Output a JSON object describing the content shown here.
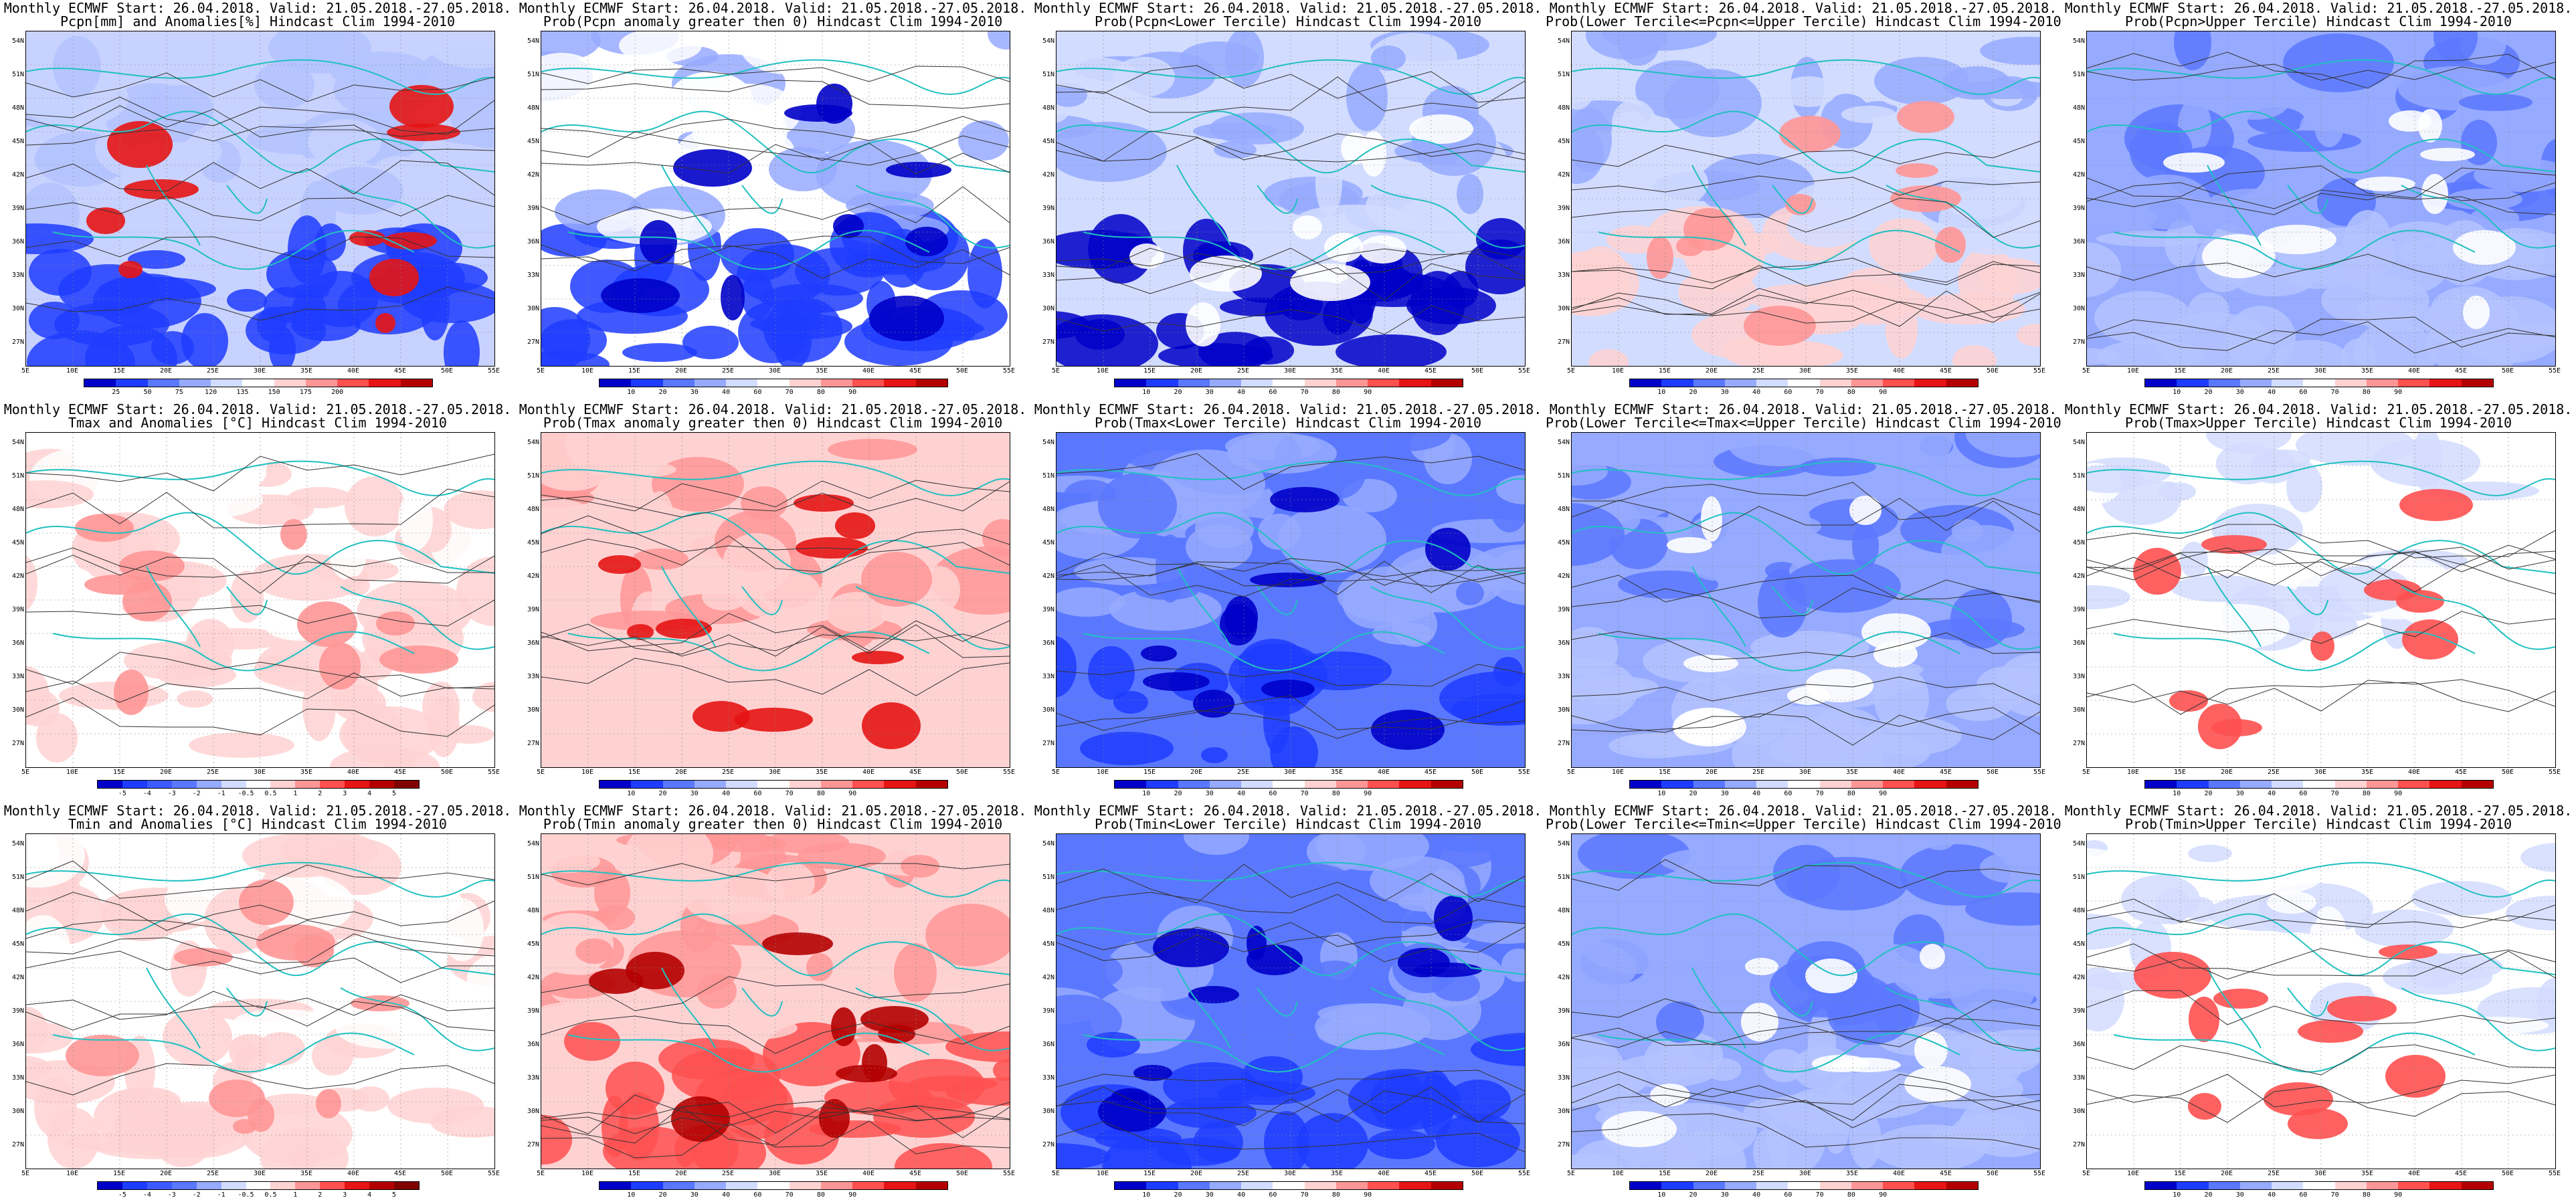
{
  "rows": [
    {
      "panels": [
        {
          "line1": "Monthly ECMWF Start: 26.04.2018. Valid: 21.05.2018.-27.05.2018.",
          "line2": "Pcpn[mm] and Anomalies[%] Hindcast Clim 1994-2010",
          "scale": "anom_pcpn",
          "theme": "pcpn_anom"
        },
        {
          "line1": "Monthly ECMWF Start: 26.04.2018. Valid: 21.05.2018.-27.05.2018.",
          "line2": "Prob(Pcpn anomaly greater then 0) Hindcast Clim 1994-2010",
          "scale": "prob",
          "theme": "blue_south"
        },
        {
          "line1": "Monthly ECMWF Start: 26.04.2018. Valid: 21.05.2018.-27.05.2018.",
          "line2": "Prob(Pcpn<Lower Tercile) Hindcast Clim 1994-2010",
          "scale": "prob",
          "theme": "darkblue_south"
        },
        {
          "line1": "Monthly ECMWF Start: 26.04.2018. Valid: 21.05.2018.-27.05.2018.",
          "line2": "Prob(Lower Tercile<=Pcpn<=Upper Tercile) Hindcast Clim 1994-2010",
          "scale": "prob",
          "theme": "red_south"
        },
        {
          "line1": "Monthly ECMWF Start: 26.04.2018. Valid: 21.05.2018.-27.05.2018.",
          "line2": "Prob(Pcpn>Upper Tercile) Hindcast Clim 1994-2010",
          "scale": "prob",
          "theme": "blue_mixed"
        }
      ]
    },
    {
      "panels": [
        {
          "line1": "Monthly ECMWF Start: 26.04.2018. Valid: 21.05.2018.-27.05.2018.",
          "line2": "Tmax and Anomalies [°C] Hindcast Clim 1994-2010",
          "scale": "anom_temp",
          "theme": "pink_light"
        },
        {
          "line1": "Monthly ECMWF Start: 26.04.2018. Valid: 21.05.2018.-27.05.2018.",
          "line2": "Prob(Tmax anomaly greater then 0) Hindcast Clim 1994-2010",
          "scale": "prob",
          "theme": "red_mid"
        },
        {
          "line1": "Monthly ECMWF Start: 26.04.2018. Valid: 21.05.2018.-27.05.2018.",
          "line2": "Prob(Tmax<Lower Tercile) Hindcast Clim 1994-2010",
          "scale": "prob",
          "theme": "blue_center"
        },
        {
          "line1": "Monthly ECMWF Start: 26.04.2018. Valid: 21.05.2018.-27.05.2018.",
          "line2": "Prob(Lower Tercile<=Tmax<=Upper Tercile) Hindcast Clim 1994-2010",
          "scale": "prob",
          "theme": "blue_mixed"
        },
        {
          "line1": "Monthly ECMWF Start: 26.04.2018. Valid: 21.05.2018.-27.05.2018.",
          "line2": "Prob(Tmax>Upper Tercile) Hindcast Clim 1994-2010",
          "scale": "prob",
          "theme": "white_red_spots"
        }
      ]
    },
    {
      "panels": [
        {
          "line1": "Monthly ECMWF Start: 26.04.2018. Valid: 21.05.2018.-27.05.2018.",
          "line2": "Tmin and Anomalies [°C] Hindcast Clim 1994-2010",
          "scale": "anom_temp",
          "theme": "pink_light"
        },
        {
          "line1": "Monthly ECMWF Start: 26.04.2018. Valid: 21.05.2018.-27.05.2018.",
          "line2": "Prob(Tmin anomaly greater then 0) Hindcast Clim 1994-2010",
          "scale": "prob",
          "theme": "red_strong"
        },
        {
          "line1": "Monthly ECMWF Start: 26.04.2018. Valid: 21.05.2018.-27.05.2018.",
          "line2": "Prob(Tmin<Lower Tercile) Hindcast Clim 1994-2010",
          "scale": "prob",
          "theme": "blue_center"
        },
        {
          "line1": "Monthly ECMWF Start: 26.04.2018. Valid: 21.05.2018.-27.05.2018.",
          "line2": "Prob(Lower Tercile<=Tmin<=Upper Tercile) Hindcast Clim 1994-2010",
          "scale": "prob",
          "theme": "blue_mixed"
        },
        {
          "line1": "Monthly ECMWF Start: 26.04.2018. Valid: 21.05.2018.-27.05.2018.",
          "line2": "Prob(Tmin>Upper Tercile) Hindcast Clim 1994-2010",
          "scale": "prob",
          "theme": "white_red_spots"
        }
      ]
    }
  ],
  "axes": {
    "lat_labels": [
      "54N",
      "51N",
      "48N",
      "45N",
      "42N",
      "39N",
      "36N",
      "33N",
      "30N",
      "27N"
    ],
    "lon_labels": [
      "5E",
      "10E",
      "15E",
      "20E",
      "25E",
      "30E",
      "35E",
      "40E",
      "45E",
      "50E",
      "55E"
    ]
  },
  "scales": {
    "prob": {
      "ticks": [
        "10",
        "20",
        "30",
        "40",
        "60",
        "70",
        "80",
        "90"
      ],
      "colors": [
        "#0000c8",
        "#1e3cff",
        "#5a78ff",
        "#96aaff",
        "#d2dcff",
        "#ffffff",
        "#ffd2d2",
        "#ff9696",
        "#ff5050",
        "#e61414",
        "#b40000"
      ]
    },
    "anom_pcpn": {
      "ticks": [
        "25",
        "50",
        "75",
        "120",
        "135",
        "150",
        "175",
        "200"
      ],
      "colors": [
        "#0000c8",
        "#1e3cff",
        "#5a78ff",
        "#96aaff",
        "#d2dcff",
        "#ffffff",
        "#ffd2d2",
        "#ff9696",
        "#ff5050",
        "#e61414",
        "#b40000"
      ]
    },
    "anom_temp": {
      "ticks": [
        "-5",
        "-4",
        "-3",
        "-2",
        "-1",
        "-0.5",
        "0.5",
        "1",
        "2",
        "3",
        "4",
        "5"
      ],
      "colors": [
        "#0000c8",
        "#1e3cff",
        "#3c5aff",
        "#5a78ff",
        "#96aaff",
        "#d2dcff",
        "#ffffff",
        "#ffd2d2",
        "#ff9696",
        "#ff5050",
        "#e61414",
        "#b40000",
        "#800000"
      ]
    }
  },
  "themes": {
    "pcpn_anom": {
      "base": "#c8d2ff",
      "north": "#b4c3ff",
      "south": "#1e3cff",
      "hot": "#e61414"
    },
    "blue_south": {
      "base": "#ffffff",
      "north": "#96aaff",
      "south": "#1e3cff",
      "hot": "#0000c8"
    },
    "darkblue_south": {
      "base": "#d2dcff",
      "north": "#96aaff",
      "south": "#0000c8",
      "hot": "#ffffff"
    },
    "red_south": {
      "base": "#d2dcff",
      "north": "#96aaff",
      "south": "#ffd2d2",
      "hot": "#ff9696"
    },
    "blue_mixed": {
      "base": "#96aaff",
      "north": "#5a78ff",
      "south": "#b4c3ff",
      "hot": "#ffffff"
    },
    "pink_light": {
      "base": "#ffffff",
      "north": "#ffd2d2",
      "south": "#ffd2d2",
      "hot": "#ff9696"
    },
    "red_mid": {
      "base": "#ffd2d2",
      "north": "#ff9696",
      "south": "#ffd2d2",
      "hot": "#e61414"
    },
    "blue_center": {
      "base": "#5a78ff",
      "north": "#96aaff",
      "south": "#1e3cff",
      "hot": "#0000c8"
    },
    "white_red_spots": {
      "base": "#ffffff",
      "north": "#d2dcff",
      "south": "#ffffff",
      "hot": "#ff5050"
    },
    "red_strong": {
      "base": "#ffd2d2",
      "north": "#ff9696",
      "south": "#ff5050",
      "hot": "#b40000"
    }
  }
}
